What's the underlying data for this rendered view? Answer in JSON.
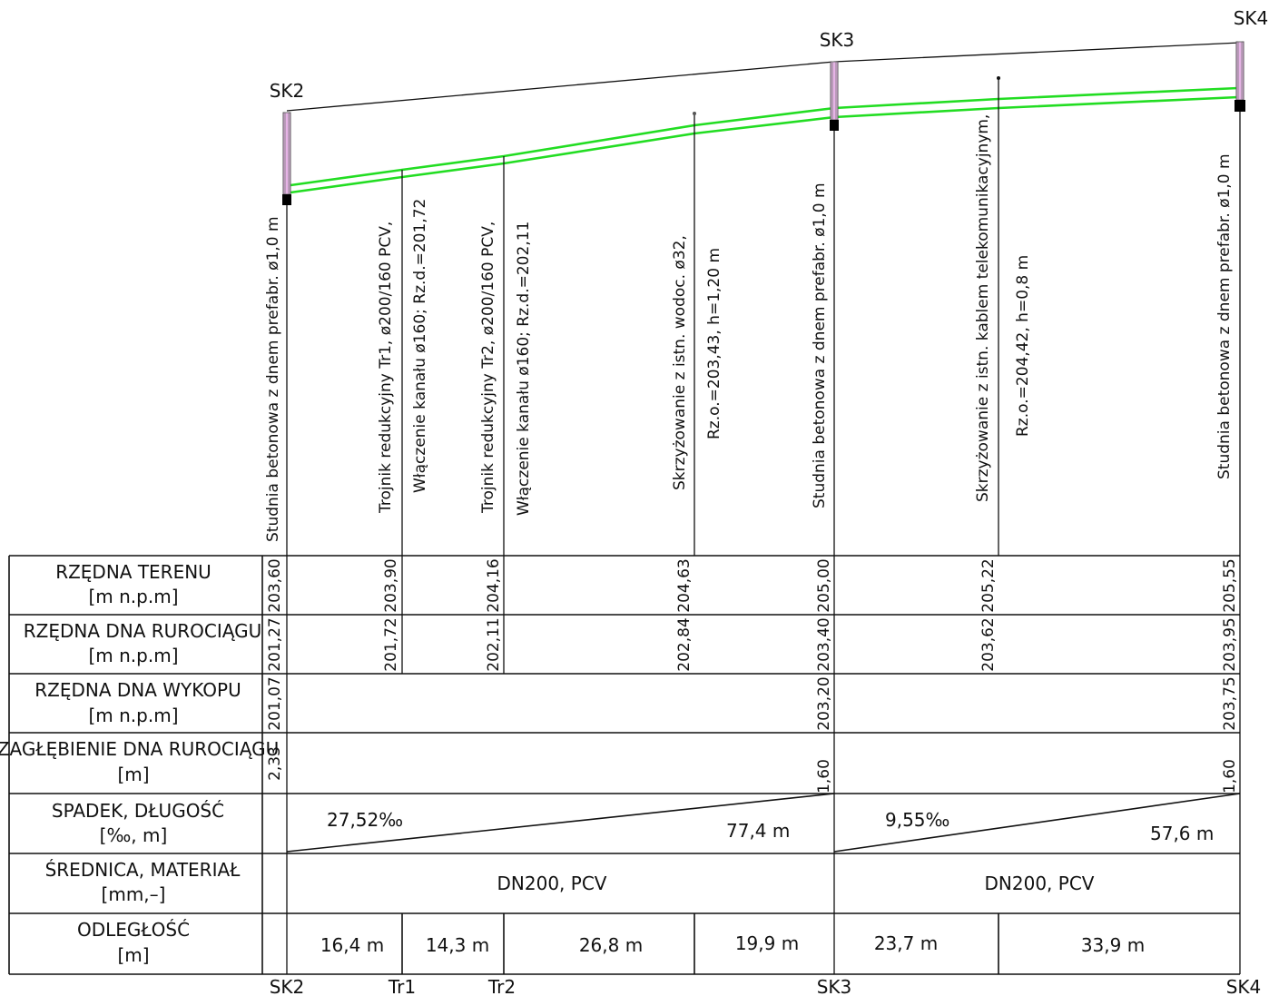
{
  "colors": {
    "pipe": "#22dd22",
    "manhole": "#e6b3e6",
    "line": "#111111"
  },
  "wells_top": {
    "sk2": "SK2",
    "sk3": "SK3",
    "sk4": "SK4"
  },
  "bottom_labels": {
    "sk2": "SK2",
    "tr1": "Tr1",
    "tr2": "Tr2",
    "sk3": "SK3",
    "sk4": "SK4"
  },
  "annotations": {
    "sk2_desc": "Studnia betonowa z dnem prefabr. ø1,0 m",
    "tr1_desc": "Trojnik redukcyjny Tr1, ø200/160 PCV,",
    "tr1_conn": "Włączenie kanału ø160; Rz.d.=201,72",
    "tr2_desc": "Trojnik redukcyjny Tr2, ø200/160 PCV,",
    "tr2_conn": "Włączenie kanału ø160; Rz.d.=202,11",
    "water_cross": "Skrzyżowanie z istn. wodoc. ø32,",
    "water_rz": "Rz.o.=203,43, h=1,20 m",
    "sk3_desc": "Studnia betonowa z dnem prefabr. ø1,0 m",
    "cable_cross": "Skrzyżowanie z istn. kablem telekomunikacyjnym,",
    "cable_rz": "Rz.o.=204,42, h=0,8 m",
    "sk4_desc": "Studnia betonowa z dnem prefabr. ø1,0 m"
  },
  "rows": {
    "terrain": {
      "l1": "RZĘDNA TERENU",
      "l2": "[m n.p.m]"
    },
    "pipe_bottom": {
      "l1": "RZĘDNA DNA RUROCIĄGU",
      "l2": "[m n.p.m]"
    },
    "trench_bottom": {
      "l1": "RZĘDNA DNA WYKOPU",
      "l2": "[m n.p.m]"
    },
    "depth": {
      "l1": "ZAGŁĘBIENIE DNA RUROCIĄGU",
      "l2": "[m]"
    },
    "slope": {
      "l1": "SPADEK, DŁUGOŚĆ",
      "l2": "[‰, m]"
    },
    "diameter": {
      "l1": "ŚREDNICA, MATERIAŁ",
      "l2": "[mm,–]"
    },
    "distance": {
      "l1": "ODLEGŁOŚĆ",
      "l2": "[m]"
    }
  },
  "values": {
    "terrain": [
      "203,60",
      "203,90",
      "204,16",
      "204,63",
      "205,00",
      "205,22",
      "205,55"
    ],
    "pipe_bottom": [
      "201,27",
      "201,72",
      "202,11",
      "202,84",
      "203,40",
      "203,62",
      "203,95"
    ],
    "trench_bottom": [
      "201,07",
      "203,20",
      "203,75"
    ],
    "depth": [
      "2,33",
      "1,60",
      "1,60"
    ]
  },
  "slope": {
    "s1_pct": "27,52‰",
    "s1_len": "77,4 m",
    "s2_pct": "9,55‰",
    "s2_len": "57,6 m"
  },
  "diameter": {
    "d1": "DN200, PCV",
    "d2": "DN200, PCV"
  },
  "distances": [
    "16,4 m",
    "14,3 m",
    "26,8 m",
    "19,9 m",
    "23,7 m",
    "33,9 m"
  ]
}
